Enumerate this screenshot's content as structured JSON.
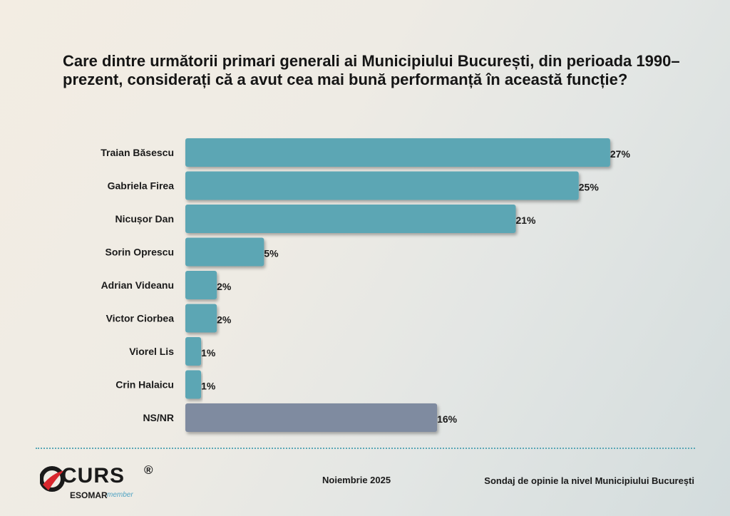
{
  "chart_data": {
    "type": "bar",
    "orientation": "horizontal",
    "title": "Care dintre următorii primari generali ai Municipiului București, din perioada 1990–prezent, considerați că a avut cea mai bună performanță în această funcție?",
    "categories": [
      "Traian Băsescu",
      "Gabriela Firea",
      "Nicușor Dan",
      "Sorin Oprescu",
      "Adrian Videanu",
      "Victor Ciorbea",
      "Viorel Lis",
      "Crin Halaicu",
      "NS/NR"
    ],
    "values": [
      27,
      25,
      21,
      5,
      2,
      2,
      1,
      1,
      16
    ],
    "value_labels": [
      "27%",
      "25%",
      "21%",
      "5%",
      "2%",
      "2%",
      "1%",
      "1%",
      "16%"
    ],
    "unit": "%",
    "colors": [
      "#5ba6b4",
      "#5ba6b4",
      "#5ba6b4",
      "#5ba6b4",
      "#5ba6b4",
      "#5ba6b4",
      "#5ba6b4",
      "#5ba6b4",
      "#7f8ba0"
    ],
    "grid": false,
    "legend": "none"
  },
  "footer": {
    "date": "Noiembrie 2025",
    "source": "Sondaj de opinie la nivel Municipiului București"
  },
  "logo": {
    "brand": "CURS",
    "registered": "®",
    "esomar": "ESOMAR",
    "member": "member"
  }
}
